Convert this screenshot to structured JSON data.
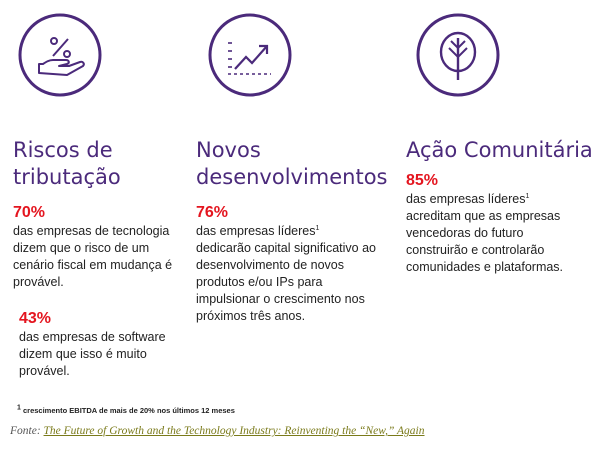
{
  "columns": [
    {
      "icon": "percent-hand-icon",
      "title": "Riscos de tributação",
      "stats": [
        {
          "pct": "70%",
          "text": "das empresas de tecnologia  dizem que o risco de um cenário fiscal em mudança é provável."
        },
        {
          "pct": "43%",
          "text": "das empresas de software dizem que isso é muito provável."
        }
      ]
    },
    {
      "icon": "growth-chart-icon",
      "title": "Novos desenvolvimentos",
      "stats": [
        {
          "pct": "76%",
          "text": "das empresas líderes",
          "sup": "1",
          "text2": "dedicarão capital significativo ao desenvolvimento de novos produtos e/ou IPs para impulsionar o crescimento nos próximos três anos."
        }
      ]
    },
    {
      "icon": "tree-icon",
      "title": "Ação Comunitária",
      "stats": [
        {
          "pct": "85%",
          "text": "das empresas líderes",
          "sup": "1",
          "text2": "acreditam que as empresas vencedoras do futuro construirão e controlarão comunidades e plataformas."
        }
      ]
    }
  ],
  "footnote": {
    "sup": "1",
    "text": "crescimento EBITDA de mais de 20% nos últimos 12 meses"
  },
  "source": {
    "label": "Fonte:",
    "link": "The Future of Growth and the Technology Industry: Reinventing  the  “New,”  Again"
  },
  "colors": {
    "accent": "#4b2a7b",
    "highlight": "#e4151f",
    "link": "#7a7a1a"
  }
}
